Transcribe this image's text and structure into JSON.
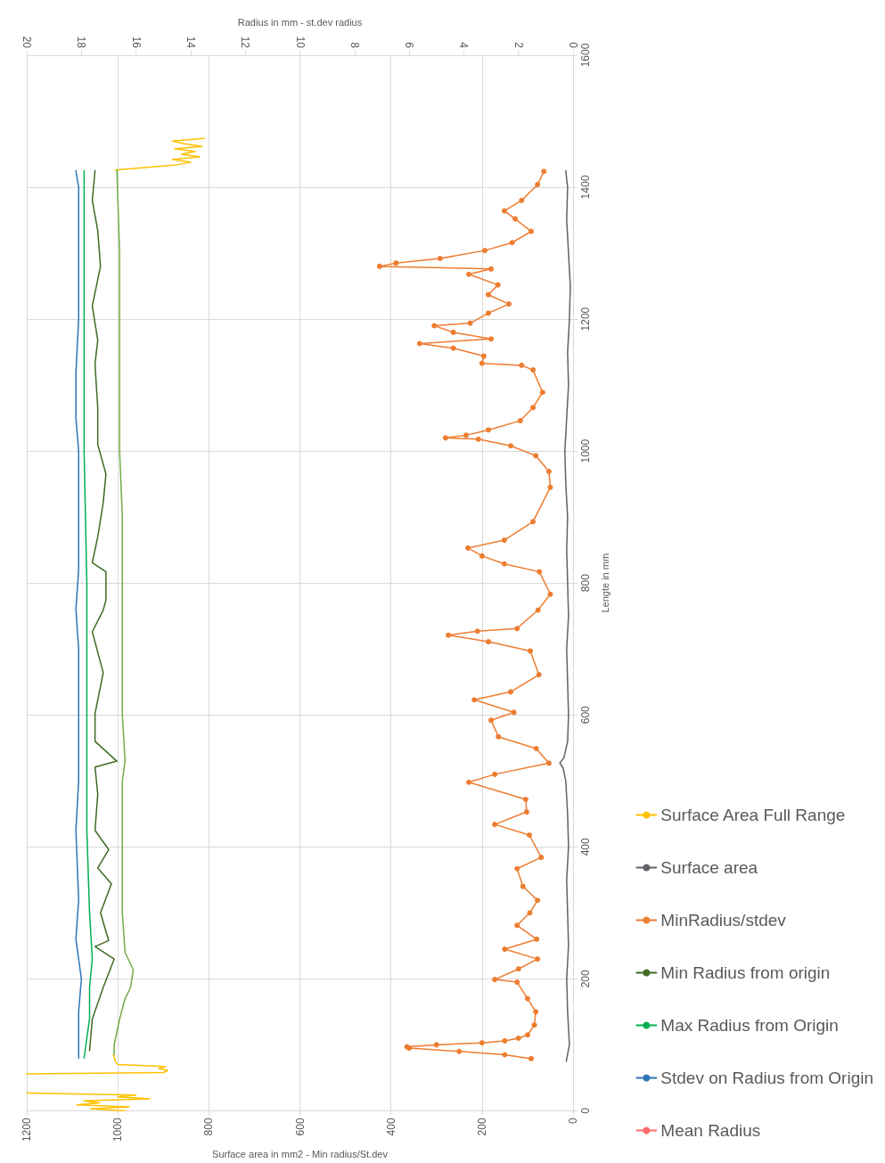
{
  "chart_data": {
    "type": "line",
    "orientation": "horizontal",
    "xlabel": "Surface area in mm2 - Min radius/St.dev",
    "ylabel": "Lengte in mm",
    "x2label": "Radius in mm - st.dev radius",
    "xlim": [
      1200,
      0
    ],
    "xticks": [
      0,
      200,
      400,
      600,
      800,
      1000,
      1200
    ],
    "x2lim": [
      20,
      0
    ],
    "x2ticks": [
      0,
      2,
      4,
      6,
      8,
      10,
      12,
      14,
      16,
      18,
      20
    ],
    "ylim": [
      0,
      1600
    ],
    "yticks": [
      0,
      200,
      400,
      600,
      800,
      1000,
      1200,
      1400,
      1600
    ],
    "grid": true,
    "legend": "right",
    "marker": "none",
    "series": [
      {
        "name": "Surface Area Full Range",
        "color": "#ffc000",
        "x": [
          0,
          3,
          6,
          9,
          12,
          15,
          18,
          21,
          24,
          27,
          40,
          56,
          58,
          61,
          64,
          67,
          70,
          75,
          85,
          800,
          1426,
          1434,
          1438,
          1442,
          1446,
          1450,
          1454,
          1458,
          1462,
          1466,
          1470,
          1474
        ],
        "values": [
          985,
          1060,
          975,
          1090,
          1040,
          1075,
          930,
          1000,
          960,
          1200,
          null,
          1200,
          900,
          890,
          910,
          895,
          1000,
          1005,
          1010,
          null,
          1005,
          870,
          840,
          880,
          820,
          860,
          830,
          875,
          815,
          855,
          880,
          810
        ]
      },
      {
        "name": "Surface area",
        "color": "#5f6368",
        "x": [
          75,
          100,
          150,
          200,
          250,
          300,
          350,
          400,
          450,
          500,
          520,
          527,
          535,
          560,
          600,
          650,
          700,
          750,
          800,
          850,
          900,
          950,
          1000,
          1050,
          1100,
          1150,
          1200,
          1250,
          1300,
          1350,
          1400,
          1425
        ],
        "values": [
          15,
          8,
          12,
          14,
          10,
          12,
          14,
          10,
          12,
          16,
          22,
          29,
          20,
          12,
          10,
          12,
          14,
          10,
          12,
          14,
          12,
          16,
          18,
          14,
          10,
          12,
          8,
          6,
          10,
          14,
          12,
          16
        ]
      },
      {
        "name": "MinRadius/stdev",
        "color": "#ed7d31",
        "marker": "circle",
        "x": [
          79,
          85,
          90,
          95,
          97,
          100,
          103,
          106,
          110,
          115,
          130,
          150,
          170,
          195,
          199,
          215,
          230,
          245,
          260,
          281,
          300,
          319,
          340,
          367,
          384,
          418,
          434,
          453,
          472,
          498,
          510,
          527,
          549,
          567,
          592,
          604,
          623,
          635,
          661,
          697,
          711,
          721,
          727,
          731,
          759,
          783,
          817,
          829,
          841,
          853,
          865,
          893,
          945,
          969,
          993,
          1008,
          1018,
          1020,
          1024,
          1032,
          1046,
          1066,
          1089,
          1123,
          1130,
          1133,
          1144,
          1156,
          1163,
          1170,
          1180,
          1190,
          1194,
          1209,
          1223,
          1237,
          1252,
          1268,
          1276,
          1280,
          1285,
          1292,
          1304,
          1316,
          1333,
          1352,
          1364,
          1380,
          1404,
          1424
        ],
        "values": [
          92,
          150,
          250,
          360,
          365,
          300,
          200,
          150,
          120,
          100,
          85,
          82,
          100,
          123,
          172,
          120,
          78,
          150,
          80,
          123,
          95,
          78,
          110,
          123,
          70,
          96,
          172,
          102,
          104,
          229,
          172,
          53,
          81,
          164,
          180,
          130,
          217,
          137,
          75,
          94,
          186,
          274,
          210,
          123,
          77,
          50,
          74,
          151,
          200,
          231,
          151,
          88,
          50,
          53,
          82,
          137,
          208,
          280,
          235,
          186,
          116,
          88,
          67,
          88,
          113,
          200,
          196,
          263,
          337,
          180,
          263,
          305,
          226,
          186,
          141,
          186,
          165,
          229,
          180,
          425,
          389,
          292,
          194,
          134,
          92,
          127,
          151,
          113,
          78,
          64
        ]
      },
      {
        "name": "Min Radius from origin",
        "color": "#3f6b24",
        "axis": "x2",
        "x": [
          91,
          139,
          187,
          230,
          249,
          258,
          300,
          344,
          368,
          396,
          425,
          480,
          521,
          530,
          560,
          602,
          664,
          726,
          759,
          774,
          817,
          831,
          870,
          922,
          965,
          1010,
          1065,
          1132,
          1168,
          1220,
          1280,
          1334,
          1380,
          1425
        ],
        "values": [
          17.7,
          17.6,
          17.2,
          16.8,
          17.5,
          17.0,
          17.3,
          16.9,
          17.4,
          17.0,
          17.5,
          17.4,
          17.5,
          16.7,
          17.5,
          17.5,
          17.2,
          17.6,
          17.2,
          17.1,
          17.1,
          17.6,
          17.4,
          17.2,
          17.1,
          17.4,
          17.4,
          17.5,
          17.4,
          17.6,
          17.3,
          17.4,
          17.6,
          17.5
        ]
      },
      {
        "name": "Max Radius from Origin",
        "color": "#00b050",
        "axis": "x2",
        "x": [
          80,
          140,
          187,
          230,
          300,
          425,
          600,
          800,
          1000,
          1200,
          1425
        ],
        "values": [
          17.9,
          17.7,
          17.7,
          17.6,
          17.7,
          17.8,
          17.8,
          17.8,
          17.9,
          17.9,
          17.9
        ]
      },
      {
        "name": "Stdev on Radius from Origin",
        "color": "#2e75b6",
        "axis": "x2",
        "x": [
          80,
          150,
          200,
          260,
          320,
          425,
          500,
          600,
          700,
          760,
          820,
          900,
          1000,
          1050,
          1118,
          1200,
          1300,
          1400,
          1425
        ],
        "values": [
          18.1,
          18.1,
          18.0,
          18.2,
          18.1,
          18.2,
          18.1,
          18.1,
          18.1,
          18.2,
          18.1,
          18.1,
          18.1,
          18.2,
          18.2,
          18.1,
          18.1,
          18.1,
          18.2
        ]
      },
      {
        "name": "Mean Radius",
        "color": "#ff6b6b",
        "axis": "x2"
      },
      {
        "color": "#70ad47",
        "axis": "x2",
        "x": [
          85,
          100,
          139,
          170,
          187,
          214,
          240,
          300,
          400,
          500,
          530,
          600,
          700,
          800,
          900,
          1000,
          1100,
          1200,
          1300,
          1426
        ],
        "values": [
          16.8,
          16.8,
          16.6,
          16.4,
          16.2,
          16.1,
          16.4,
          16.5,
          16.5,
          16.5,
          16.4,
          16.5,
          16.5,
          16.5,
          16.5,
          16.6,
          16.6,
          16.6,
          16.6,
          16.7
        ]
      }
    ]
  }
}
